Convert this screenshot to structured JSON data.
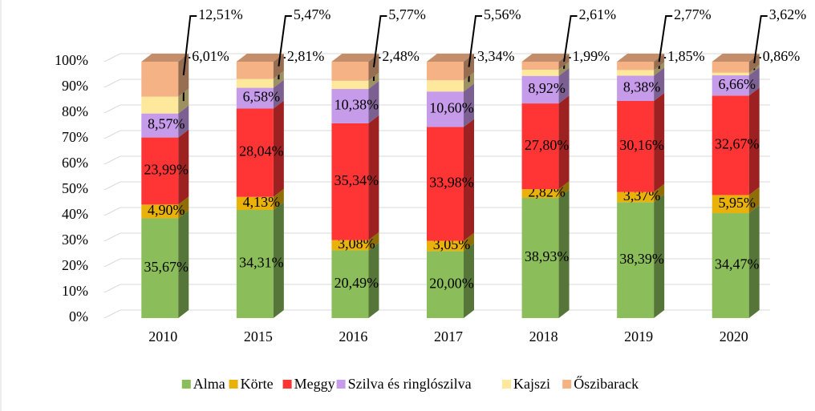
{
  "chart_data": {
    "type": "bar",
    "stacking": "percent",
    "categories": [
      "2010",
      "2015",
      "2016",
      "2017",
      "2018",
      "2019",
      "2020"
    ],
    "series": [
      {
        "name": "Alma",
        "color": "#8bbd5a",
        "values": [
          35.67,
          34.31,
          20.49,
          20.0,
          38.93,
          38.39,
          34.47
        ],
        "value_labels": [
          "35,67%",
          "34,31%",
          "20,49%",
          "20,00%",
          "38,93%",
          "38,39%",
          "34,47%"
        ]
      },
      {
        "name": "Körte",
        "color": "#e8b20a",
        "values": [
          4.9,
          4.13,
          3.08,
          3.05,
          2.82,
          3.37,
          5.95
        ],
        "value_labels": [
          "4,90%",
          "4,13%",
          "3,08%",
          "3,05%",
          "2,82%",
          "3,37%",
          "5,95%"
        ]
      },
      {
        "name": "Meggy",
        "color": "#ff3535",
        "values": [
          23.99,
          28.04,
          35.34,
          33.98,
          27.8,
          30.16,
          32.67
        ],
        "value_labels": [
          "23,99%",
          "28,04%",
          "35,34%",
          "33,98%",
          "27,80%",
          "30,16%",
          "32,67%"
        ]
      },
      {
        "name": "Szilva és ringlószilva",
        "color": "#c69bea",
        "values": [
          8.57,
          6.58,
          10.38,
          10.6,
          8.92,
          8.38,
          6.66
        ],
        "value_labels": [
          "8,57%",
          "6,58%",
          "10,38%",
          "10,60%",
          "8,92%",
          "8,38%",
          "6,66%"
        ]
      },
      {
        "name": "Kajszi",
        "color": "#fde89c",
        "values": [
          6.01,
          2.81,
          2.48,
          3.34,
          1.99,
          1.85,
          0.86
        ],
        "value_labels": [
          "6,01%",
          "2,81%",
          "2,48%",
          "3,34%",
          "1,99%",
          "1,85%",
          "0,86%"
        ]
      },
      {
        "name": "Őszibarack",
        "color": "#f5b285",
        "values": [
          12.51,
          5.47,
          5.77,
          5.56,
          2.61,
          2.77,
          3.62
        ],
        "value_labels": [
          "12,51%",
          "5,47%",
          "5,77%",
          "5,56%",
          "2,61%",
          "2,77%",
          "3,62%"
        ]
      }
    ],
    "ylim": [
      0,
      100
    ],
    "yticks": [
      {
        "value": 0,
        "label": "0%"
      },
      {
        "value": 10,
        "label": "10%"
      },
      {
        "value": 20,
        "label": "20%"
      },
      {
        "value": 30,
        "label": "30%"
      },
      {
        "value": 40,
        "label": "40%"
      },
      {
        "value": 50,
        "label": "50%"
      },
      {
        "value": 60,
        "label": "60%"
      },
      {
        "value": 70,
        "label": "70%"
      },
      {
        "value": 80,
        "label": "80%"
      },
      {
        "value": 90,
        "label": "90%"
      },
      {
        "value": 100,
        "label": "100%"
      }
    ],
    "grid": true,
    "legend": "bottom"
  }
}
